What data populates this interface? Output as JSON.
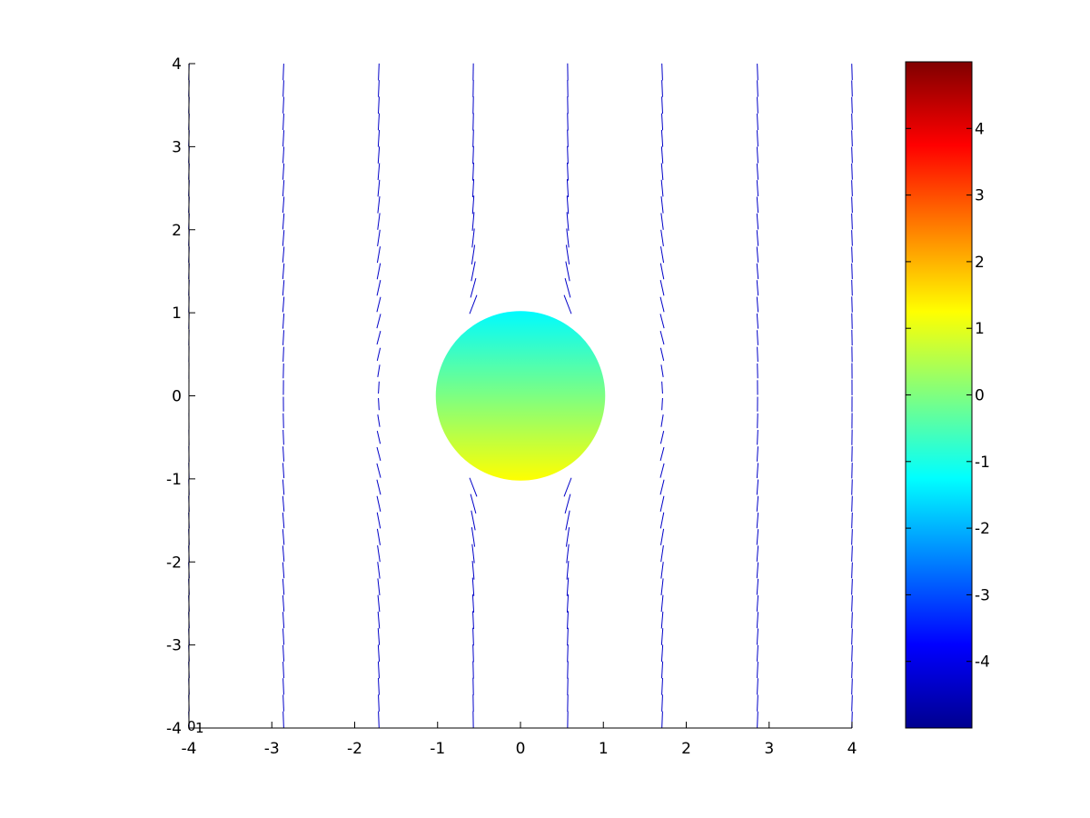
{
  "chart_data": {
    "type": "quiver",
    "title": "",
    "xlabel": "",
    "ylabel": "",
    "xlim": [
      -4,
      4
    ],
    "ylim": [
      -4,
      4
    ],
    "x_ticks": [
      "-4",
      "-3",
      "-2",
      "-1",
      "0",
      "1",
      "2",
      "3",
      "4"
    ],
    "y_ticks": [
      "-4",
      "-3",
      "-2",
      "-1",
      "0",
      "1",
      "2",
      "3",
      "4"
    ],
    "grid": false,
    "arrow_color": "#0000c8",
    "field_columns_x": [
      -4.0,
      -2.86,
      -1.71,
      -0.57,
      0.57,
      1.71,
      2.86,
      4.0
    ],
    "field_rows_y": [
      -3.9,
      -3.7,
      -3.5,
      -3.3,
      -3.1,
      -2.9,
      -2.7,
      -2.5,
      -2.3,
      -2.1,
      -1.9,
      -1.7,
      -1.5,
      -1.3,
      -1.1,
      -0.9,
      -0.7,
      -0.5,
      -0.3,
      -0.1,
      0.1,
      0.3,
      0.5,
      0.7,
      0.9,
      1.1,
      1.3,
      1.5,
      1.7,
      1.9,
      2.1,
      2.3,
      2.5,
      2.7,
      2.9,
      3.1,
      3.3,
      3.5,
      3.7,
      3.9
    ],
    "disk": {
      "center": [
        0,
        0
      ],
      "radius": 1.0,
      "value_top": -1.8,
      "value_bottom": 1.2
    },
    "colorbar": {
      "colormap": "jet",
      "range": [
        -5,
        5
      ],
      "ticks": [
        "-4",
        "-3",
        "-2",
        "-1",
        "0",
        "1",
        "2",
        "3",
        "4"
      ]
    },
    "corner_labels": [
      "0",
      "1"
    ]
  }
}
